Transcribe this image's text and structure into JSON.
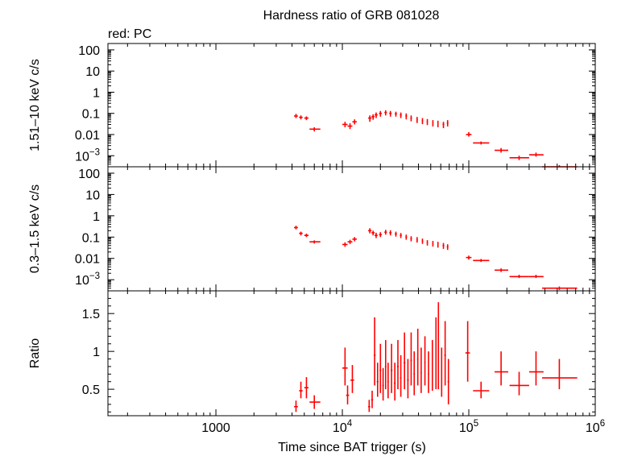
{
  "header": {
    "title": "Hardness ratio of GRB 081028",
    "subtitle": "red: PC"
  },
  "colors": {
    "data": "#ff0000",
    "axes": "#000000",
    "background": "#ffffff"
  },
  "chart_data": [
    {
      "type": "scatter",
      "panel": "hard-band",
      "ylabel": "1.51–10 keV c/s",
      "yscale": "log",
      "ylim": [
        0.0003,
        200
      ],
      "yticks": [
        {
          "v": 100,
          "label": "100"
        },
        {
          "v": 10,
          "label": "10"
        },
        {
          "v": 1,
          "label": "1"
        },
        {
          "v": 0.1,
          "label": "0.1"
        },
        {
          "v": 0.01,
          "label": "0.01"
        },
        {
          "v": 0.001,
          "label": "10",
          "sup": "−3"
        }
      ],
      "points": [
        {
          "x": 4300,
          "xlo": 4150,
          "xhi": 4450,
          "y": 0.075,
          "ylo": 0.06,
          "yhi": 0.095
        },
        {
          "x": 4700,
          "xlo": 4550,
          "xhi": 4850,
          "y": 0.065,
          "ylo": 0.052,
          "yhi": 0.08
        },
        {
          "x": 5200,
          "xlo": 5000,
          "xhi": 5400,
          "y": 0.06,
          "ylo": 0.048,
          "yhi": 0.072
        },
        {
          "x": 6000,
          "xlo": 5500,
          "xhi": 6700,
          "y": 0.018,
          "ylo": 0.014,
          "yhi": 0.022
        },
        {
          "x": 10500,
          "xlo": 10000,
          "xhi": 11000,
          "y": 0.03,
          "ylo": 0.022,
          "yhi": 0.04
        },
        {
          "x": 11500,
          "xlo": 11000,
          "xhi": 12000,
          "y": 0.025,
          "ylo": 0.018,
          "yhi": 0.034
        },
        {
          "x": 12500,
          "xlo": 12000,
          "xhi": 13000,
          "y": 0.04,
          "ylo": 0.03,
          "yhi": 0.052
        },
        {
          "x": 16500,
          "xlo": 16000,
          "xhi": 17000,
          "y": 0.06,
          "ylo": 0.04,
          "yhi": 0.08
        },
        {
          "x": 17500,
          "xlo": 17000,
          "xhi": 18000,
          "y": 0.07,
          "ylo": 0.05,
          "yhi": 0.09
        },
        {
          "x": 18500,
          "xlo": 18000,
          "xhi": 19000,
          "y": 0.085,
          "ylo": 0.06,
          "yhi": 0.11
        },
        {
          "x": 20000,
          "xlo": 19500,
          "xhi": 20500,
          "y": 0.1,
          "ylo": 0.07,
          "yhi": 0.13
        },
        {
          "x": 22000,
          "xlo": 21500,
          "xhi": 22500,
          "y": 0.11,
          "ylo": 0.08,
          "yhi": 0.14
        },
        {
          "x": 24000,
          "xlo": 23500,
          "xhi": 24500,
          "y": 0.1,
          "ylo": 0.07,
          "yhi": 0.13
        },
        {
          "x": 26500,
          "xlo": 26000,
          "xhi": 27000,
          "y": 0.095,
          "ylo": 0.07,
          "yhi": 0.12
        },
        {
          "x": 29000,
          "xlo": 28500,
          "xhi": 29500,
          "y": 0.085,
          "ylo": 0.06,
          "yhi": 0.11
        },
        {
          "x": 32000,
          "xlo": 31500,
          "xhi": 32500,
          "y": 0.075,
          "ylo": 0.052,
          "yhi": 0.1
        },
        {
          "x": 35000,
          "xlo": 34500,
          "xhi": 35500,
          "y": 0.06,
          "ylo": 0.042,
          "yhi": 0.08
        },
        {
          "x": 39000,
          "xlo": 38500,
          "xhi": 39500,
          "y": 0.05,
          "ylo": 0.035,
          "yhi": 0.068
        },
        {
          "x": 43000,
          "xlo": 42500,
          "xhi": 43500,
          "y": 0.045,
          "ylo": 0.031,
          "yhi": 0.06
        },
        {
          "x": 47000,
          "xlo": 46500,
          "xhi": 47500,
          "y": 0.04,
          "ylo": 0.028,
          "yhi": 0.054
        },
        {
          "x": 52000,
          "xlo": 51500,
          "xhi": 52500,
          "y": 0.035,
          "ylo": 0.024,
          "yhi": 0.048
        },
        {
          "x": 57000,
          "xlo": 56500,
          "xhi": 57500,
          "y": 0.033,
          "ylo": 0.022,
          "yhi": 0.045
        },
        {
          "x": 63000,
          "xlo": 62000,
          "xhi": 64000,
          "y": 0.03,
          "ylo": 0.02,
          "yhi": 0.04
        },
        {
          "x": 68000,
          "xlo": 67000,
          "xhi": 69000,
          "y": 0.035,
          "ylo": 0.024,
          "yhi": 0.048
        },
        {
          "x": 100000,
          "xlo": 95000,
          "xhi": 105000,
          "y": 0.01,
          "ylo": 0.008,
          "yhi": 0.013
        },
        {
          "x": 125000,
          "xlo": 108000,
          "xhi": 145000,
          "y": 0.004,
          "ylo": 0.0034,
          "yhi": 0.0047
        },
        {
          "x": 180000,
          "xlo": 160000,
          "xhi": 205000,
          "y": 0.0018,
          "ylo": 0.0014,
          "yhi": 0.0023
        },
        {
          "x": 250000,
          "xlo": 210000,
          "xhi": 300000,
          "y": 0.0008,
          "ylo": 0.00062,
          "yhi": 0.001
        },
        {
          "x": 340000,
          "xlo": 300000,
          "xhi": 390000,
          "y": 0.0011,
          "ylo": 0.0009,
          "yhi": 0.0014
        },
        {
          "x": 520000,
          "xlo": 380000,
          "xhi": 720000,
          "y": 0.0003,
          "ylo": 0.0003,
          "yhi": 0.00036
        }
      ]
    },
    {
      "type": "scatter",
      "panel": "soft-band",
      "ylabel": "0.3–1.5 keV c/s",
      "yscale": "log",
      "ylim": [
        0.0003,
        200
      ],
      "yticks": [
        {
          "v": 100,
          "label": "100"
        },
        {
          "v": 10,
          "label": "10"
        },
        {
          "v": 1,
          "label": "1"
        },
        {
          "v": 0.1,
          "label": "0.1"
        },
        {
          "v": 0.01,
          "label": "0.01"
        },
        {
          "v": 0.001,
          "label": "10",
          "sup": "−3"
        }
      ],
      "points": [
        {
          "x": 4300,
          "xlo": 4150,
          "xhi": 4450,
          "y": 0.28,
          "ylo": 0.23,
          "yhi": 0.34
        },
        {
          "x": 4700,
          "xlo": 4550,
          "xhi": 4850,
          "y": 0.15,
          "ylo": 0.12,
          "yhi": 0.18
        },
        {
          "x": 5200,
          "xlo": 5000,
          "xhi": 5400,
          "y": 0.12,
          "ylo": 0.1,
          "yhi": 0.145
        },
        {
          "x": 6000,
          "xlo": 5500,
          "xhi": 6700,
          "y": 0.06,
          "ylo": 0.05,
          "yhi": 0.07
        },
        {
          "x": 10500,
          "xlo": 10000,
          "xhi": 11000,
          "y": 0.045,
          "ylo": 0.035,
          "yhi": 0.057
        },
        {
          "x": 11500,
          "xlo": 11000,
          "xhi": 12000,
          "y": 0.06,
          "ylo": 0.047,
          "yhi": 0.075
        },
        {
          "x": 12500,
          "xlo": 12000,
          "xhi": 13000,
          "y": 0.08,
          "ylo": 0.063,
          "yhi": 0.1
        },
        {
          "x": 16500,
          "xlo": 16000,
          "xhi": 17000,
          "y": 0.2,
          "ylo": 0.15,
          "yhi": 0.26
        },
        {
          "x": 17500,
          "xlo": 17000,
          "xhi": 18000,
          "y": 0.16,
          "ylo": 0.12,
          "yhi": 0.2
        },
        {
          "x": 18500,
          "xlo": 18000,
          "xhi": 19000,
          "y": 0.12,
          "ylo": 0.09,
          "yhi": 0.16
        },
        {
          "x": 20000,
          "xlo": 19500,
          "xhi": 20500,
          "y": 0.13,
          "ylo": 0.1,
          "yhi": 0.17
        },
        {
          "x": 22000,
          "xlo": 21500,
          "xhi": 22500,
          "y": 0.17,
          "ylo": 0.13,
          "yhi": 0.22
        },
        {
          "x": 24000,
          "xlo": 23500,
          "xhi": 24500,
          "y": 0.16,
          "ylo": 0.12,
          "yhi": 0.21
        },
        {
          "x": 26500,
          "xlo": 26000,
          "xhi": 27000,
          "y": 0.14,
          "ylo": 0.105,
          "yhi": 0.18
        },
        {
          "x": 29000,
          "xlo": 28500,
          "xhi": 29500,
          "y": 0.12,
          "ylo": 0.09,
          "yhi": 0.155
        },
        {
          "x": 32000,
          "xlo": 31500,
          "xhi": 32500,
          "y": 0.1,
          "ylo": 0.075,
          "yhi": 0.13
        },
        {
          "x": 35000,
          "xlo": 34500,
          "xhi": 35500,
          "y": 0.085,
          "ylo": 0.063,
          "yhi": 0.11
        },
        {
          "x": 39000,
          "xlo": 38500,
          "xhi": 39500,
          "y": 0.075,
          "ylo": 0.055,
          "yhi": 0.1
        },
        {
          "x": 43000,
          "xlo": 42500,
          "xhi": 43500,
          "y": 0.065,
          "ylo": 0.048,
          "yhi": 0.085
        },
        {
          "x": 47000,
          "xlo": 46500,
          "xhi": 47500,
          "y": 0.055,
          "ylo": 0.04,
          "yhi": 0.072
        },
        {
          "x": 52000,
          "xlo": 51500,
          "xhi": 52500,
          "y": 0.05,
          "ylo": 0.036,
          "yhi": 0.066
        },
        {
          "x": 57000,
          "xlo": 56500,
          "xhi": 57500,
          "y": 0.045,
          "ylo": 0.032,
          "yhi": 0.06
        },
        {
          "x": 63000,
          "xlo": 62000,
          "xhi": 64000,
          "y": 0.04,
          "ylo": 0.028,
          "yhi": 0.053
        },
        {
          "x": 68000,
          "xlo": 67000,
          "xhi": 69000,
          "y": 0.035,
          "ylo": 0.025,
          "yhi": 0.046
        },
        {
          "x": 100000,
          "xlo": 95000,
          "xhi": 105000,
          "y": 0.011,
          "ylo": 0.0088,
          "yhi": 0.0135
        },
        {
          "x": 125000,
          "xlo": 108000,
          "xhi": 145000,
          "y": 0.008,
          "ylo": 0.0068,
          "yhi": 0.0094
        },
        {
          "x": 180000,
          "xlo": 160000,
          "xhi": 205000,
          "y": 0.0028,
          "ylo": 0.0023,
          "yhi": 0.0034
        },
        {
          "x": 250000,
          "xlo": 210000,
          "xhi": 300000,
          "y": 0.0014,
          "ylo": 0.0012,
          "yhi": 0.0017
        },
        {
          "x": 340000,
          "xlo": 300000,
          "xhi": 390000,
          "y": 0.0014,
          "ylo": 0.0012,
          "yhi": 0.0017
        },
        {
          "x": 520000,
          "xlo": 380000,
          "xhi": 720000,
          "y": 0.0004,
          "ylo": 0.00033,
          "yhi": 0.00048
        }
      ]
    },
    {
      "type": "scatter",
      "panel": "ratio",
      "ylabel": "Ratio",
      "yscale": "linear",
      "ylim": [
        0.15,
        1.8
      ],
      "yticks": [
        {
          "v": 0.5,
          "label": "0.5"
        },
        {
          "v": 1,
          "label": "1"
        },
        {
          "v": 1.5,
          "label": "1.5"
        }
      ],
      "points": [
        {
          "x": 4300,
          "xlo": 4150,
          "xhi": 4450,
          "y": 0.27,
          "ylo": 0.2,
          "yhi": 0.35
        },
        {
          "x": 4700,
          "xlo": 4550,
          "xhi": 4850,
          "y": 0.48,
          "ylo": 0.38,
          "yhi": 0.6
        },
        {
          "x": 5200,
          "xlo": 5000,
          "xhi": 5400,
          "y": 0.52,
          "ylo": 0.38,
          "yhi": 0.66
        },
        {
          "x": 6000,
          "xlo": 5500,
          "xhi": 6700,
          "y": 0.33,
          "ylo": 0.24,
          "yhi": 0.42
        },
        {
          "x": 10500,
          "xlo": 10000,
          "xhi": 11000,
          "y": 0.78,
          "ylo": 0.55,
          "yhi": 1.05
        },
        {
          "x": 11000,
          "xlo": 10700,
          "xhi": 11300,
          "y": 0.42,
          "ylo": 0.3,
          "yhi": 0.55
        },
        {
          "x": 12000,
          "xlo": 11600,
          "xhi": 12400,
          "y": 0.62,
          "ylo": 0.45,
          "yhi": 0.82
        },
        {
          "x": 16300,
          "xlo": 16000,
          "xhi": 16600,
          "y": 0.27,
          "ylo": 0.2,
          "yhi": 0.36
        },
        {
          "x": 17200,
          "xlo": 16900,
          "xhi": 17500,
          "y": 0.36,
          "ylo": 0.25,
          "yhi": 0.48
        },
        {
          "x": 18000,
          "xlo": 17700,
          "xhi": 18300,
          "y": 0.95,
          "ylo": 0.55,
          "yhi": 1.45
        },
        {
          "x": 19000,
          "xlo": 18700,
          "xhi": 19300,
          "y": 0.6,
          "ylo": 0.4,
          "yhi": 0.85
        },
        {
          "x": 20000,
          "xlo": 19700,
          "xhi": 20300,
          "y": 0.75,
          "ylo": 0.45,
          "yhi": 1.1
        },
        {
          "x": 21000,
          "xlo": 20700,
          "xhi": 21300,
          "y": 0.55,
          "ylo": 0.35,
          "yhi": 0.78
        },
        {
          "x": 22000,
          "xlo": 21700,
          "xhi": 22300,
          "y": 0.8,
          "ylo": 0.5,
          "yhi": 1.15
        },
        {
          "x": 23000,
          "xlo": 22700,
          "xhi": 23300,
          "y": 0.6,
          "ylo": 0.38,
          "yhi": 0.85
        },
        {
          "x": 24500,
          "xlo": 24100,
          "xhi": 24900,
          "y": 0.75,
          "ylo": 0.45,
          "yhi": 1.1
        },
        {
          "x": 26000,
          "xlo": 25600,
          "xhi": 26400,
          "y": 0.58,
          "ylo": 0.35,
          "yhi": 0.85
        },
        {
          "x": 27500,
          "xlo": 27100,
          "xhi": 27900,
          "y": 0.8,
          "ylo": 0.5,
          "yhi": 1.15
        },
        {
          "x": 29000,
          "xlo": 28600,
          "xhi": 29400,
          "y": 0.65,
          "ylo": 0.4,
          "yhi": 0.95
        },
        {
          "x": 31000,
          "xlo": 30500,
          "xhi": 31500,
          "y": 0.85,
          "ylo": 0.5,
          "yhi": 1.25
        },
        {
          "x": 33000,
          "xlo": 32500,
          "xhi": 33500,
          "y": 0.62,
          "ylo": 0.38,
          "yhi": 0.9
        },
        {
          "x": 35000,
          "xlo": 34500,
          "xhi": 35500,
          "y": 0.88,
          "ylo": 0.55,
          "yhi": 1.25
        },
        {
          "x": 37000,
          "xlo": 36500,
          "xhi": 37500,
          "y": 0.7,
          "ylo": 0.42,
          "yhi": 1.0
        },
        {
          "x": 39500,
          "xlo": 39000,
          "xhi": 40000,
          "y": 0.9,
          "ylo": 0.55,
          "yhi": 1.3
        },
        {
          "x": 42000,
          "xlo": 41500,
          "xhi": 42500,
          "y": 0.72,
          "ylo": 0.45,
          "yhi": 1.05
        },
        {
          "x": 45000,
          "xlo": 44500,
          "xhi": 45500,
          "y": 0.85,
          "ylo": 0.55,
          "yhi": 1.2
        },
        {
          "x": 48000,
          "xlo": 47500,
          "xhi": 48500,
          "y": 0.7,
          "ylo": 0.45,
          "yhi": 1.0
        },
        {
          "x": 51500,
          "xlo": 51000,
          "xhi": 52000,
          "y": 0.8,
          "ylo": 0.48,
          "yhi": 1.15
        },
        {
          "x": 55000,
          "xlo": 54500,
          "xhi": 55500,
          "y": 0.95,
          "ylo": 0.5,
          "yhi": 1.45
        },
        {
          "x": 57500,
          "xlo": 57000,
          "xhi": 58000,
          "y": 1.05,
          "ylo": 0.5,
          "yhi": 1.65
        },
        {
          "x": 61000,
          "xlo": 60500,
          "xhi": 61500,
          "y": 0.7,
          "ylo": 0.4,
          "yhi": 1.05
        },
        {
          "x": 65000,
          "xlo": 64000,
          "xhi": 66000,
          "y": 0.95,
          "ylo": 0.55,
          "yhi": 1.4
        },
        {
          "x": 69000,
          "xlo": 68000,
          "xhi": 70000,
          "y": 0.6,
          "ylo": 0.3,
          "yhi": 0.9
        },
        {
          "x": 98000,
          "xlo": 94000,
          "xhi": 102000,
          "y": 0.98,
          "ylo": 0.6,
          "yhi": 1.4
        },
        {
          "x": 125000,
          "xlo": 108000,
          "xhi": 145000,
          "y": 0.48,
          "ylo": 0.38,
          "yhi": 0.6
        },
        {
          "x": 180000,
          "xlo": 160000,
          "xhi": 205000,
          "y": 0.73,
          "ylo": 0.55,
          "yhi": 1.0
        },
        {
          "x": 250000,
          "xlo": 210000,
          "xhi": 300000,
          "y": 0.55,
          "ylo": 0.42,
          "yhi": 0.73
        },
        {
          "x": 340000,
          "xlo": 300000,
          "xhi": 390000,
          "y": 0.73,
          "ylo": 0.55,
          "yhi": 1.0
        },
        {
          "x": 520000,
          "xlo": 380000,
          "xhi": 720000,
          "y": 0.65,
          "ylo": 0.5,
          "yhi": 0.9
        }
      ]
    }
  ],
  "x_axis": {
    "label": "Time since BAT trigger (s)",
    "scale": "log",
    "xlim": [
      140,
      1000000
    ],
    "ticks": [
      {
        "v": 1000,
        "label": "1000"
      },
      {
        "v": 10000,
        "label": "10",
        "sup": "4"
      },
      {
        "v": 100000,
        "label": "10",
        "sup": "5"
      },
      {
        "v": 1000000,
        "label": "10",
        "sup": "6"
      }
    ]
  }
}
